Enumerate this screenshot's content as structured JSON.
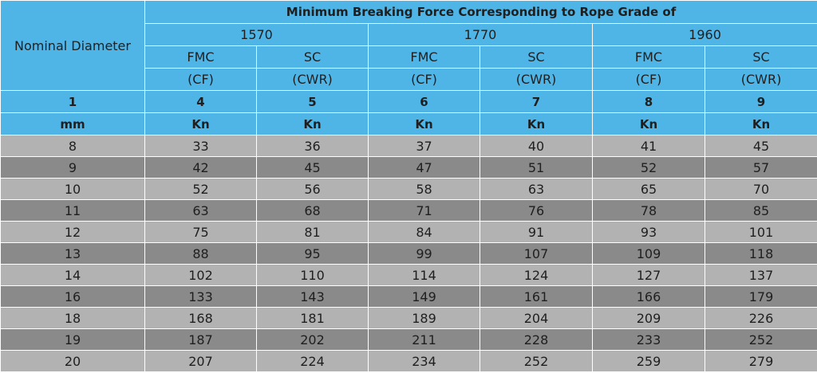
{
  "table": {
    "title": "Minimum Breaking Force Corresponding to Rope Grade of",
    "first_header": "Nominal Diameter",
    "grades": [
      "1570",
      "1770",
      "1960"
    ],
    "types": [
      "FMC",
      "SC",
      "FMC",
      "SC",
      "FMC",
      "SC"
    ],
    "codes": [
      "(CF)",
      "(CWR)",
      "(CF)",
      "(CWR)",
      "(CF)",
      "(CWR)"
    ],
    "numbers": [
      "1",
      "4",
      "5",
      "6",
      "7",
      "8",
      "9"
    ],
    "units": [
      "mm",
      "Kn",
      "Kn",
      "Kn",
      "Kn",
      "Kn",
      "Kn"
    ],
    "rows": [
      [
        "8",
        "33",
        "36",
        "37",
        "40",
        "41",
        "45"
      ],
      [
        "9",
        "42",
        "45",
        "47",
        "51",
        "52",
        "57"
      ],
      [
        "10",
        "52",
        "56",
        "58",
        "63",
        "65",
        "70"
      ],
      [
        "11",
        "63",
        "68",
        "71",
        "76",
        "78",
        "85"
      ],
      [
        "12",
        "75",
        "81",
        "84",
        "91",
        "93",
        "101"
      ],
      [
        "13",
        "88",
        "95",
        "99",
        "107",
        "109",
        "118"
      ],
      [
        "14",
        "102",
        "110",
        "114",
        "124",
        "127",
        "137"
      ],
      [
        "16",
        "133",
        "143",
        "149",
        "161",
        "166",
        "179"
      ],
      [
        "18",
        "168",
        "181",
        "189",
        "204",
        "209",
        "226"
      ],
      [
        "19",
        "187",
        "202",
        "211",
        "228",
        "233",
        "252"
      ],
      [
        "20",
        "207",
        "224",
        "234",
        "252",
        "259",
        "279"
      ]
    ]
  },
  "colors": {
    "header_blue": "#4fb4e6",
    "row_light": "#b2b2b2",
    "row_dark": "#8a8a8a",
    "text": "#1f1f1f"
  }
}
